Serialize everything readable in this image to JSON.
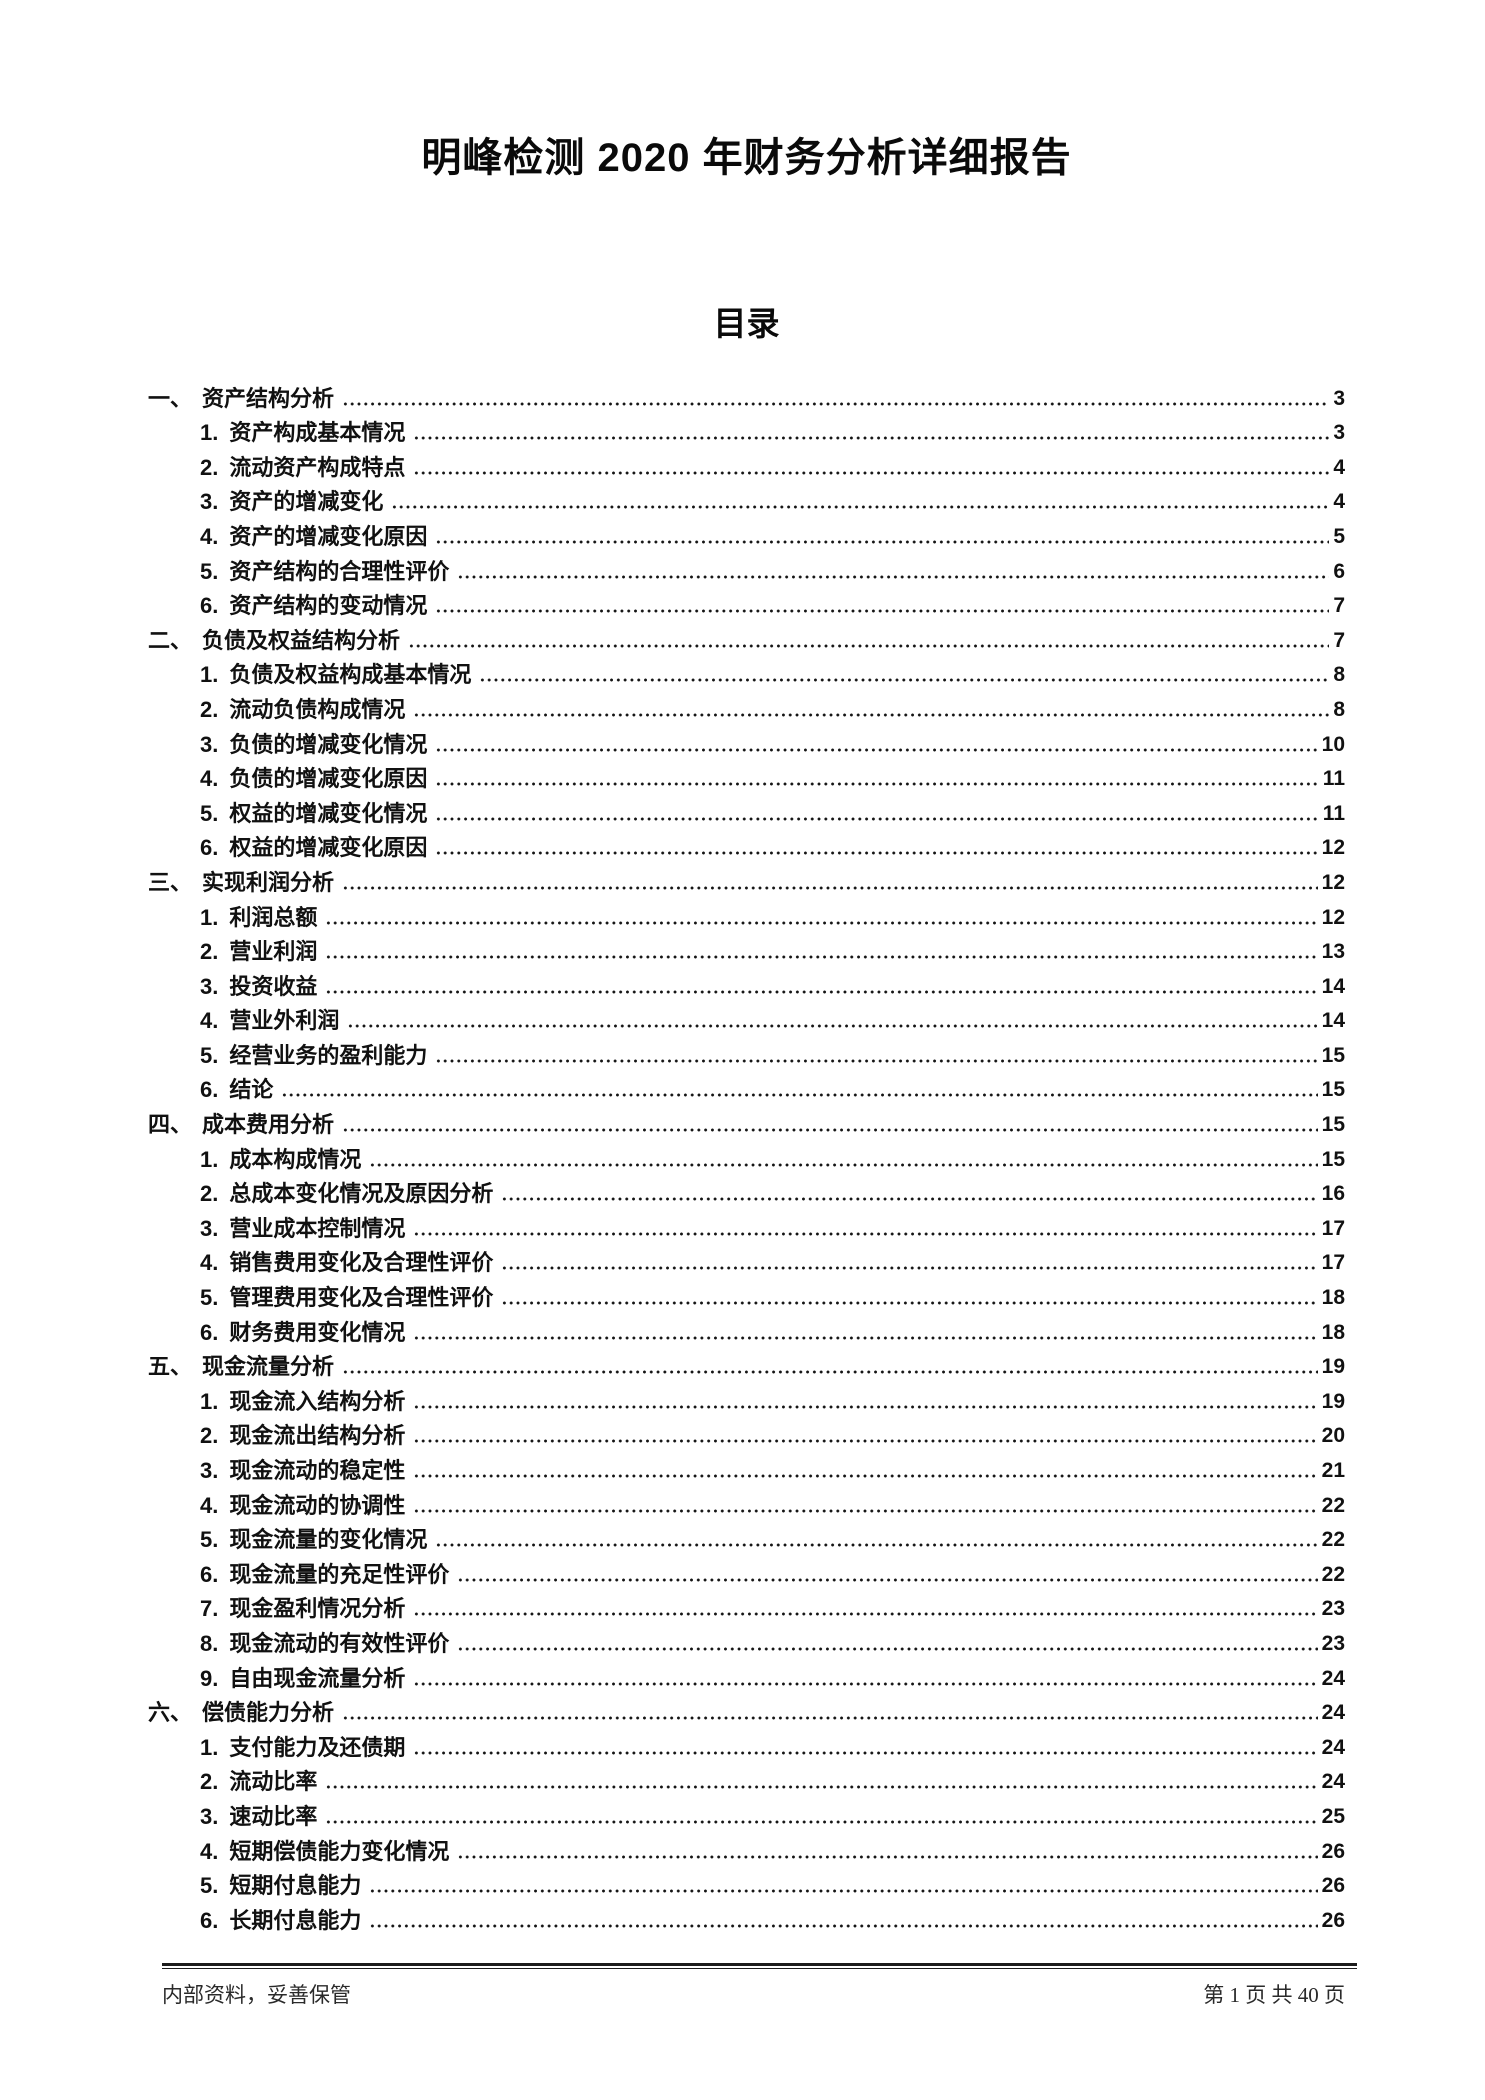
{
  "page": {
    "title": "明峰检测 2020 年财务分析详细报告",
    "toc_heading": "目录"
  },
  "toc": {
    "items": [
      {
        "n": "一、",
        "t": "资产结构分析",
        "p": "3",
        "lvl": 1
      },
      {
        "n": "1.",
        "t": "资产构成基本情况",
        "p": "3",
        "lvl": 2
      },
      {
        "n": "2.",
        "t": "流动资产构成特点",
        "p": "4",
        "lvl": 2
      },
      {
        "n": "3.",
        "t": "资产的增减变化",
        "p": "4",
        "lvl": 2
      },
      {
        "n": "4.",
        "t": "资产的增减变化原因",
        "p": "5",
        "lvl": 2
      },
      {
        "n": "5.",
        "t": "资产结构的合理性评价",
        "p": "6",
        "lvl": 2
      },
      {
        "n": "6.",
        "t": "资产结构的变动情况",
        "p": "7",
        "lvl": 2
      },
      {
        "n": "二、",
        "t": "负债及权益结构分析",
        "p": "7",
        "lvl": 1
      },
      {
        "n": "1.",
        "t": "负债及权益构成基本情况",
        "p": "8",
        "lvl": 2
      },
      {
        "n": "2.",
        "t": "流动负债构成情况",
        "p": "8",
        "lvl": 2
      },
      {
        "n": "3.",
        "t": "负债的增减变化情况",
        "p": "10",
        "lvl": 2
      },
      {
        "n": "4.",
        "t": "负债的增减变化原因",
        "p": "11",
        "lvl": 2
      },
      {
        "n": "5.",
        "t": "权益的增减变化情况",
        "p": "11",
        "lvl": 2
      },
      {
        "n": "6.",
        "t": "权益的增减变化原因",
        "p": "12",
        "lvl": 2
      },
      {
        "n": "三、",
        "t": "实现利润分析",
        "p": "12",
        "lvl": 1
      },
      {
        "n": "1.",
        "t": "利润总额",
        "p": "12",
        "lvl": 2
      },
      {
        "n": "2.",
        "t": "营业利润",
        "p": "13",
        "lvl": 2
      },
      {
        "n": "3.",
        "t": "投资收益",
        "p": "14",
        "lvl": 2
      },
      {
        "n": "4.",
        "t": "营业外利润",
        "p": "14",
        "lvl": 2
      },
      {
        "n": "5.",
        "t": "经营业务的盈利能力",
        "p": "15",
        "lvl": 2
      },
      {
        "n": "6.",
        "t": "结论",
        "p": "15",
        "lvl": 2
      },
      {
        "n": "四、",
        "t": "成本费用分析",
        "p": "15",
        "lvl": 1
      },
      {
        "n": "1.",
        "t": "成本构成情况",
        "p": "15",
        "lvl": 2
      },
      {
        "n": "2.",
        "t": "总成本变化情况及原因分析",
        "p": "16",
        "lvl": 2
      },
      {
        "n": "3.",
        "t": "营业成本控制情况",
        "p": "17",
        "lvl": 2
      },
      {
        "n": "4.",
        "t": "销售费用变化及合理性评价",
        "p": "17",
        "lvl": 2
      },
      {
        "n": "5.",
        "t": "管理费用变化及合理性评价",
        "p": "18",
        "lvl": 2
      },
      {
        "n": "6.",
        "t": "财务费用变化情况",
        "p": "18",
        "lvl": 2
      },
      {
        "n": "五、",
        "t": "现金流量分析",
        "p": "19",
        "lvl": 1
      },
      {
        "n": "1.",
        "t": "现金流入结构分析",
        "p": "19",
        "lvl": 2
      },
      {
        "n": "2.",
        "t": "现金流出结构分析",
        "p": "20",
        "lvl": 2
      },
      {
        "n": "3.",
        "t": "现金流动的稳定性",
        "p": "21",
        "lvl": 2
      },
      {
        "n": "4.",
        "t": "现金流动的协调性",
        "p": "22",
        "lvl": 2
      },
      {
        "n": "5.",
        "t": "现金流量的变化情况",
        "p": "22",
        "lvl": 2
      },
      {
        "n": "6.",
        "t": "现金流量的充足性评价",
        "p": "22",
        "lvl": 2
      },
      {
        "n": "7.",
        "t": "现金盈利情况分析",
        "p": "23",
        "lvl": 2
      },
      {
        "n": "8.",
        "t": "现金流动的有效性评价",
        "p": "23",
        "lvl": 2
      },
      {
        "n": "9.",
        "t": "自由现金流量分析",
        "p": "24",
        "lvl": 2
      },
      {
        "n": "六、",
        "t": "偿债能力分析",
        "p": "24",
        "lvl": 1
      },
      {
        "n": "1.",
        "t": "支付能力及还债期",
        "p": "24",
        "lvl": 2
      },
      {
        "n": "2.",
        "t": "流动比率",
        "p": "24",
        "lvl": 2
      },
      {
        "n": "3.",
        "t": "速动比率",
        "p": "25",
        "lvl": 2
      },
      {
        "n": "4.",
        "t": "短期偿债能力变化情况",
        "p": "26",
        "lvl": 2
      },
      {
        "n": "5.",
        "t": "短期付息能力",
        "p": "26",
        "lvl": 2
      },
      {
        "n": "6.",
        "t": "长期付息能力",
        "p": "26",
        "lvl": 2
      }
    ]
  },
  "footer": {
    "left": "内部资料，妥善保管",
    "right": "第 1 页 共 40 页"
  }
}
